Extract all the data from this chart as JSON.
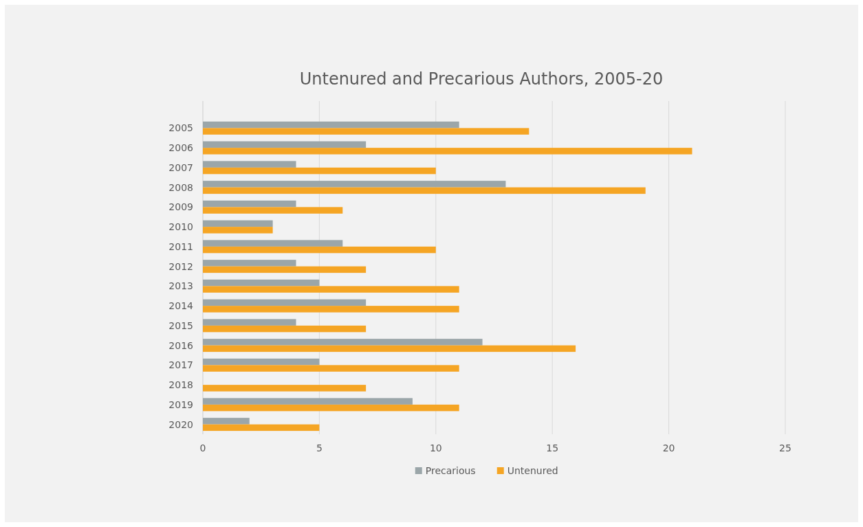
{
  "chart_data": {
    "type": "bar",
    "orientation": "horizontal",
    "title": "Untenured and Precarious Authors, 2005-20",
    "categories": [
      "2005",
      "2006",
      "2007",
      "2008",
      "2009",
      "2010",
      "2011",
      "2012",
      "2013",
      "2014",
      "2015",
      "2016",
      "2017",
      "2018",
      "2019",
      "2020"
    ],
    "series": [
      {
        "name": "Precarious",
        "color": "#9ba6a9",
        "values": [
          11,
          7,
          4,
          13,
          4,
          3,
          6,
          4,
          5,
          7,
          4,
          12,
          5,
          0,
          9,
          2
        ]
      },
      {
        "name": "Untenured",
        "color": "#f5a524",
        "values": [
          14,
          21,
          10,
          19,
          6,
          3,
          10,
          7,
          11,
          11,
          7,
          16,
          11,
          7,
          11,
          5
        ]
      }
    ],
    "xlim": [
      0,
      25
    ],
    "xticks": [
      0,
      5,
      10,
      15,
      20,
      25
    ],
    "grid": "x",
    "legend": "bottom"
  }
}
